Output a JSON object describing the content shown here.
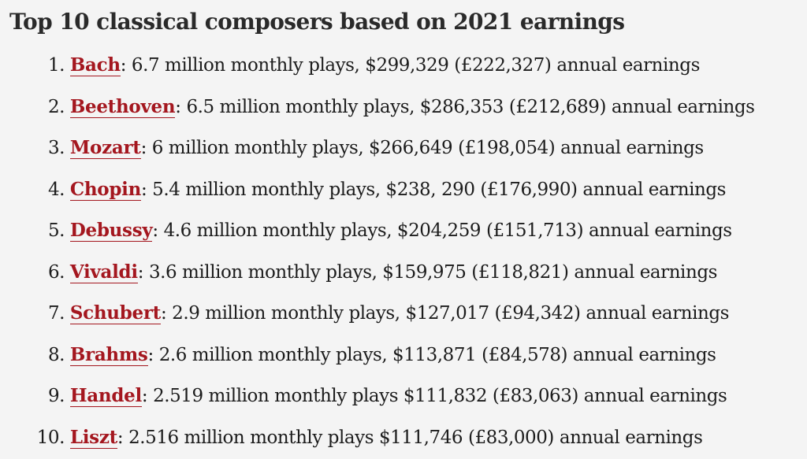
{
  "page": {
    "title": "Top 10 classical composers based on 2021 earnings"
  },
  "composers": [
    {
      "rank": "1",
      "name": "Bach",
      "details": "6.7 million monthly plays, $299,329 (£222,327) annual earnings"
    },
    {
      "rank": "2",
      "name": "Beethoven",
      "details": "6.5 million monthly plays, $286,353 (£212,689) annual earnings"
    },
    {
      "rank": "3",
      "name": "Mozart",
      "details": "6 million monthly plays, $266,649 (£198,054) annual earnings"
    },
    {
      "rank": "4",
      "name": "Chopin",
      "details": "5.4 million monthly plays, $238, 290 (£176,990) annual earnings"
    },
    {
      "rank": "5",
      "name": "Debussy",
      "details": "4.6 million monthly plays, $204,259 (£151,713) annual earnings"
    },
    {
      "rank": "6",
      "name": "Vivaldi",
      "details": "3.6 million monthly plays, $159,975 (£118,821) annual earnings"
    },
    {
      "rank": "7",
      "name": "Schubert",
      "details": "2.9 million monthly plays, $127,017 (£94,342) annual earnings"
    },
    {
      "rank": "8",
      "name": "Brahms",
      "details": "2.6 million monthly plays, $113,871 (£84,578) annual earnings"
    },
    {
      "rank": "9",
      "name": "Handel",
      "details": "2.519 million monthly plays $111,832 (£83,063) annual earnings"
    },
    {
      "rank": "10",
      "name": "Liszt",
      "details": "2.516 million monthly plays $111,746 (£83,000) annual earnings"
    }
  ],
  "colors": {
    "background": "#f4f4f4",
    "link": "#a4171f",
    "text": "#1c1c1c"
  }
}
